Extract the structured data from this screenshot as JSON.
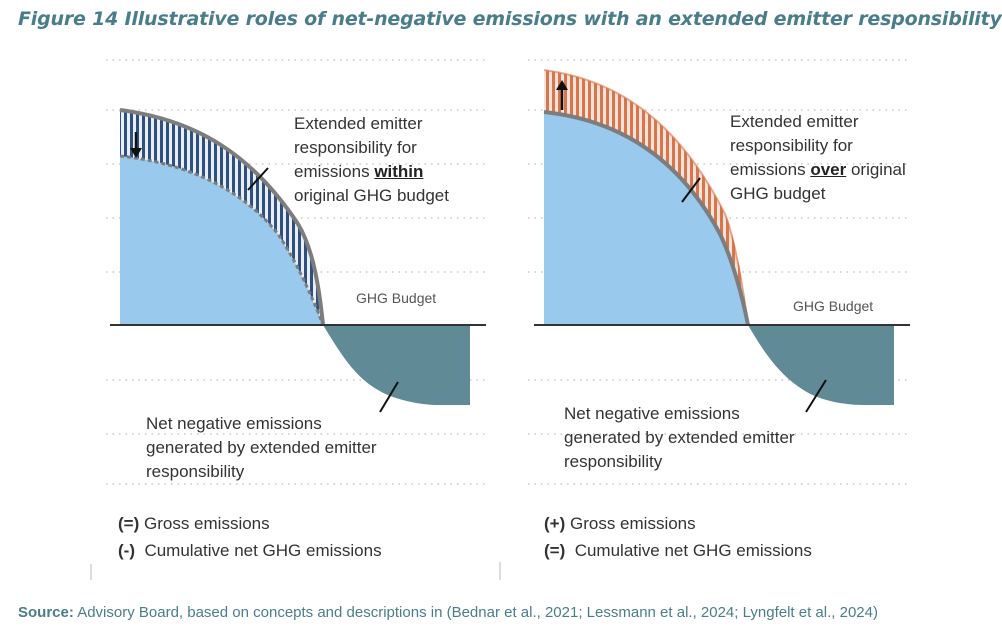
{
  "figure": {
    "title": "Figure 14 Illustrative roles of net-negative emissions with an extended emitter responsibility"
  },
  "left_panel": {
    "callout_top": {
      "line1": "Extended emitter",
      "line2": "responsibility for",
      "line3_prefix": "emissions ",
      "line3_emph": "within",
      "line4": "original GHG budget"
    },
    "budget_label": "GHG Budget",
    "callout_bottom": {
      "line1": "Net negative emissions",
      "line2": "generated by extended emitter",
      "line3": "responsibility"
    },
    "legend": [
      {
        "symbol": "(=)",
        "text": "Gross emissions"
      },
      {
        "symbol": "(-)",
        "text": "Cumulative net GHG emissions"
      }
    ],
    "arrow_direction": "down"
  },
  "right_panel": {
    "callout_top": {
      "line1": "Extended emitter",
      "line2": "responsibility for",
      "line3_prefix": "emissions ",
      "line3_emph": "over",
      "line3_suffix": " original",
      "line4": "GHG budget"
    },
    "budget_label": "GHG Budget",
    "callout_bottom": {
      "line1": "Net negative emissions",
      "line2": "generated by extended emitter",
      "line3": "responsibility"
    },
    "legend": [
      {
        "symbol": "(+)",
        "text": "Gross emissions"
      },
      {
        "symbol": "(=)",
        "text": "Cumulative net GHG emissions"
      }
    ],
    "arrow_direction": "up"
  },
  "source": {
    "label": "Source:",
    "text": " Advisory Board, based on concepts and descriptions in (Bednar et al., 2021; Lessmann et al., 2024; Lyngfelt et al., 2024)"
  },
  "colors": {
    "title": "#4a7d8c",
    "gross_fill": "#99c9ed",
    "negative_fill": "#5f8a96",
    "hatch_blue": "#2f4f7f",
    "hatch_orange": "#d9754a",
    "curve_line": "#7d7d7d"
  }
}
